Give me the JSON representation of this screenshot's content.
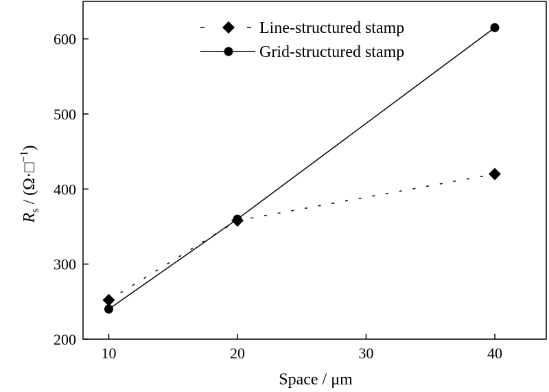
{
  "chart_data": {
    "type": "line",
    "x": [
      10,
      20,
      40
    ],
    "series": [
      {
        "name": "Line-structured stamp",
        "values": [
          252,
          358,
          420
        ],
        "marker": "diamond",
        "line_style": "dotted"
      },
      {
        "name": "Grid-structured stamp",
        "values": [
          240,
          360,
          615
        ],
        "marker": "circle",
        "line_style": "solid"
      }
    ],
    "xlabel": "Space / μm",
    "ylabel": {
      "symbol": "R",
      "subscript": "s",
      "unit": " / (Ω·□",
      "exponent": "−1",
      "close": ")"
    },
    "xlim": [
      8,
      44
    ],
    "ylim": [
      200,
      650
    ],
    "xticks": [
      10,
      20,
      30,
      40
    ],
    "yticks": [
      200,
      300,
      400,
      500,
      600
    ],
    "grid": false,
    "legend_position": "top-right",
    "colors": {
      "line": "#000000",
      "background": "#ffffff"
    }
  }
}
